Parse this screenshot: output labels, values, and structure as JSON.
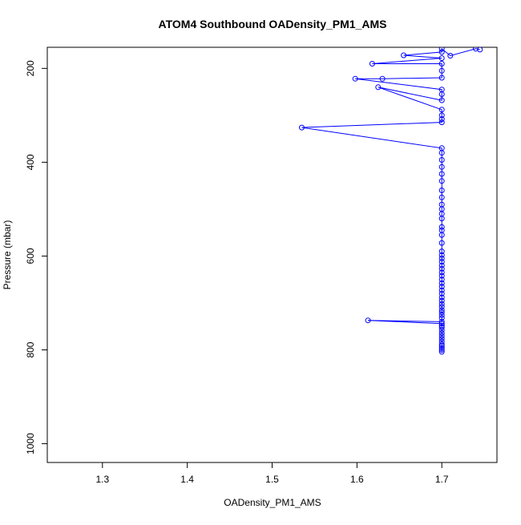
{
  "chart_data": {
    "type": "line",
    "title": "ATOM4 Southbound OADensity_PM1_AMS",
    "xlabel": "OADensity_PM1_AMS",
    "ylabel": "Pressure (mbar)",
    "xlim": [
      1.235,
      1.765
    ],
    "ylim": [
      1040,
      155
    ],
    "y_reversed": true,
    "x_ticks": [
      1.3,
      1.4,
      1.5,
      1.6,
      1.7
    ],
    "x_tick_labels": [
      "1.3",
      "1.4",
      "1.5",
      "1.6",
      "1.7"
    ],
    "y_ticks": [
      200,
      400,
      600,
      800,
      1000
    ],
    "y_tick_labels": [
      "200",
      "400",
      "600",
      "800",
      "1000"
    ],
    "grid": false,
    "series": [
      {
        "color": "#0000ff",
        "marker": "open-circle",
        "points": [
          [
            1.7,
            804
          ],
          [
            1.7,
            800
          ],
          [
            1.7,
            796
          ],
          [
            1.7,
            792
          ],
          [
            1.7,
            788
          ],
          [
            1.7,
            782
          ],
          [
            1.7,
            776
          ],
          [
            1.7,
            770
          ],
          [
            1.7,
            764
          ],
          [
            1.7,
            758
          ],
          [
            1.7,
            752
          ],
          [
            1.7,
            748
          ],
          [
            1.7,
            744
          ],
          [
            1.613,
            737
          ],
          [
            1.7,
            740
          ],
          [
            1.7,
            732
          ],
          [
            1.7,
            726
          ],
          [
            1.7,
            720
          ],
          [
            1.7,
            715
          ],
          [
            1.7,
            708
          ],
          [
            1.7,
            702
          ],
          [
            1.7,
            695
          ],
          [
            1.7,
            688
          ],
          [
            1.7,
            680
          ],
          [
            1.7,
            673
          ],
          [
            1.7,
            665
          ],
          [
            1.7,
            658
          ],
          [
            1.7,
            650
          ],
          [
            1.7,
            642
          ],
          [
            1.7,
            635
          ],
          [
            1.7,
            627
          ],
          [
            1.7,
            620
          ],
          [
            1.7,
            612
          ],
          [
            1.7,
            605
          ],
          [
            1.7,
            598
          ],
          [
            1.7,
            590
          ],
          [
            1.7,
            572
          ],
          [
            1.7,
            555
          ],
          [
            1.7,
            545
          ],
          [
            1.7,
            538
          ],
          [
            1.7,
            520
          ],
          [
            1.7,
            510
          ],
          [
            1.7,
            500
          ],
          [
            1.7,
            490
          ],
          [
            1.7,
            475
          ],
          [
            1.7,
            460
          ],
          [
            1.7,
            440
          ],
          [
            1.7,
            425
          ],
          [
            1.7,
            410
          ],
          [
            1.7,
            395
          ],
          [
            1.7,
            380
          ],
          [
            1.7,
            370
          ],
          [
            1.535,
            326
          ],
          [
            1.7,
            315
          ],
          [
            1.7,
            308
          ],
          [
            1.7,
            300
          ],
          [
            1.7,
            288
          ],
          [
            1.625,
            240
          ],
          [
            1.7,
            268
          ],
          [
            1.7,
            255
          ],
          [
            1.7,
            245
          ],
          [
            1.598,
            222
          ],
          [
            1.63,
            222
          ],
          [
            1.7,
            220
          ],
          [
            1.7,
            205
          ],
          [
            1.7,
            190
          ],
          [
            1.618,
            190
          ],
          [
            1.7,
            178
          ],
          [
            1.655,
            172
          ],
          [
            1.7,
            165
          ],
          [
            1.7,
            158
          ],
          [
            1.71,
            173
          ],
          [
            1.74,
            158
          ],
          [
            1.745,
            160
          ]
        ]
      }
    ]
  }
}
